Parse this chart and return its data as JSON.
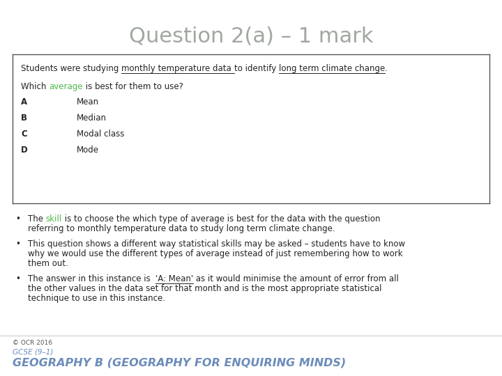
{
  "title": "Question 2(a) – 1 mark",
  "title_color": "#a0a8a0",
  "title_fontsize": 22,
  "bg_color": "#ffffff",
  "box_line_color": "#555555",
  "which_colored_color": "#4db84d",
  "options": [
    {
      "letter": "A",
      "text": "Mean"
    },
    {
      "letter": "B",
      "text": "Median"
    },
    {
      "letter": "C",
      "text": "Modal class"
    },
    {
      "letter": "D",
      "text": "Mode"
    }
  ],
  "footer_left": "© OCR 2016",
  "footer_gcse": "GCSE (9–1)",
  "footer_subject": "GEOGRAPHY B (GEOGRAPHY FOR ENQUIRING MINDS)",
  "footer_gcse_color": "#6b8cba",
  "footer_subject_color": "#6b8cba",
  "separator_color": "#cccccc",
  "text_fontsize": 8.5,
  "small_fontsize": 6.5
}
